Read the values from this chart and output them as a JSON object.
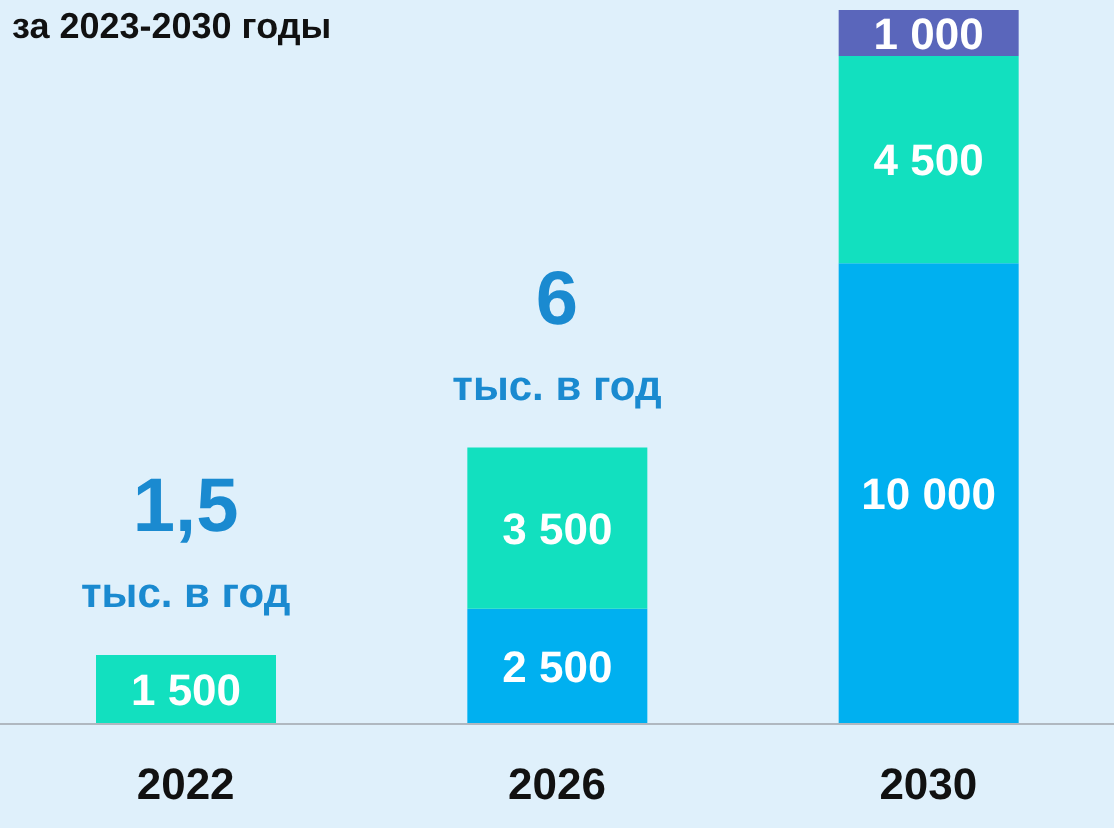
{
  "chart_data": {
    "type": "bar",
    "title": "за 2023-2030 годы",
    "categories": [
      "2022",
      "2026",
      "2030"
    ],
    "stacked": true,
    "data_labels": true,
    "series": [
      {
        "color": "#00b0f0",
        "values": [
          null,
          2500,
          10000
        ]
      },
      {
        "color": "#12e0bf",
        "values": [
          1500,
          3500,
          4500
        ]
      },
      {
        "color": "#5a66bb",
        "values": [
          null,
          null,
          1000
        ]
      }
    ],
    "annotations": [
      "1,5\nтыс. в год",
      "6\nтыс. в год"
    ]
  }
}
